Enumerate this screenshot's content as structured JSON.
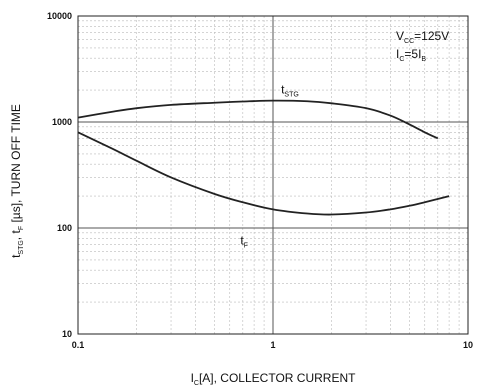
{
  "chart_data": {
    "type": "line",
    "title": "",
    "xlabel": {
      "main": "I",
      "sub": "C",
      "rest": "[A], COLLECTOR CURRENT"
    },
    "ylabel": {
      "parts": [
        {
          "t": "t",
          "sub": false
        },
        {
          "t": "STG",
          "sub": true
        },
        {
          "t": ", t",
          "sub": false
        },
        {
          "t": "F",
          "sub": true
        },
        {
          "t": " [µs], TURN OFF TIME",
          "sub": false
        }
      ]
    },
    "x_scale": "log",
    "y_scale": "log",
    "xlim": [
      0.1,
      10
    ],
    "ylim": [
      10,
      10000
    ],
    "x_ticks": [
      "0.1",
      "1",
      "10"
    ],
    "y_ticks": [
      "10",
      "100",
      "1000",
      "10000"
    ],
    "grid": true,
    "series": [
      {
        "name": "tSTG",
        "label_main": "t",
        "label_sub": "STG",
        "label_at": {
          "x": 1.1,
          "y": 1850
        },
        "x": [
          0.1,
          0.15,
          0.2,
          0.3,
          0.5,
          0.7,
          1.0,
          1.5,
          2.0,
          3.0,
          4.0,
          5.0,
          6.0,
          7.0
        ],
        "y": [
          1100,
          1250,
          1350,
          1450,
          1520,
          1560,
          1590,
          1570,
          1500,
          1350,
          1150,
          950,
          800,
          700
        ]
      },
      {
        "name": "tF",
        "label_main": "t",
        "label_sub": "F",
        "label_at": {
          "x": 0.68,
          "y": 70
        },
        "x": [
          0.1,
          0.15,
          0.2,
          0.3,
          0.5,
          0.7,
          1.0,
          1.5,
          2.0,
          3.0,
          4.0,
          5.0,
          6.0,
          8.0
        ],
        "y": [
          800,
          560,
          430,
          300,
          210,
          175,
          150,
          137,
          134,
          140,
          150,
          162,
          175,
          200
        ]
      }
    ],
    "conditions": [
      {
        "main": "V",
        "sub": "CC",
        "rest": "=125V"
      },
      {
        "main": "I",
        "sub": "C",
        "rest": "=5I",
        "sub2": "B"
      }
    ]
  }
}
